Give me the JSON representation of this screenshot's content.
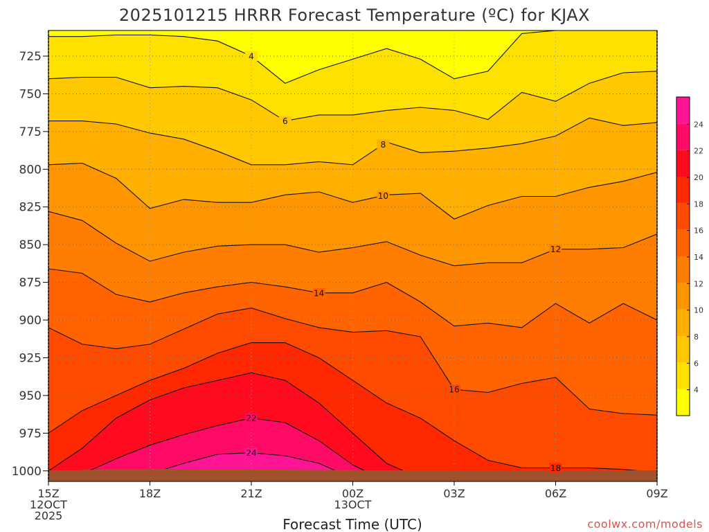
{
  "title": "2025101215 HRRR Forecast Temperature (ºC) for KJAX",
  "xlabel": "Forecast Time (UTC)",
  "credit": "coolwx.com/models",
  "chart_data": {
    "type": "heatmap",
    "title": "2025101215 HRRR Forecast Temperature (ºC) for KJAX",
    "xlabel": "Forecast Time (UTC)",
    "ylabel": "",
    "x_hours": [
      0,
      1,
      2,
      3,
      4,
      5,
      6,
      7,
      8,
      9,
      10,
      11,
      12,
      13,
      14,
      15,
      16,
      17,
      18
    ],
    "x_ticks": [
      {
        "hour": 0,
        "lines": [
          "15Z",
          "12OCT",
          "2025"
        ]
      },
      {
        "hour": 3,
        "lines": [
          "18Z"
        ]
      },
      {
        "hour": 6,
        "lines": [
          "21Z"
        ]
      },
      {
        "hour": 9,
        "lines": [
          "00Z",
          "13OCT"
        ]
      },
      {
        "hour": 12,
        "lines": [
          "03Z"
        ]
      },
      {
        "hour": 15,
        "lines": [
          "06Z"
        ]
      },
      {
        "hour": 18,
        "lines": [
          "09Z"
        ]
      }
    ],
    "ylim": [
      1007,
      708
    ],
    "y_ticks": [
      725,
      750,
      775,
      800,
      825,
      850,
      875,
      900,
      925,
      950,
      975,
      1000
    ],
    "grid": true,
    "contour_interval": 2,
    "contours": [
      {
        "level": 4,
        "label_at": 6.0,
        "p": [
          712,
          712,
          711,
          711,
          712,
          715,
          725,
          743,
          734,
          727,
          720,
          727,
          740,
          735,
          710,
          708,
          708,
          708,
          708
        ]
      },
      {
        "level": 6,
        "label_at": 7.0,
        "p": [
          740,
          739,
          739,
          746,
          745,
          746,
          754,
          768,
          764,
          764,
          761,
          759,
          761,
          767,
          749,
          755,
          743,
          736,
          735
        ]
      },
      {
        "level": 8,
        "label_at": 9.9,
        "p": [
          768,
          768,
          770,
          776,
          780,
          788,
          797,
          797,
          795,
          797,
          782,
          789,
          788,
          786,
          783,
          778,
          766,
          771,
          769
        ]
      },
      {
        "level": 10,
        "label_at": 9.9,
        "p": [
          797,
          796,
          806,
          826,
          820,
          822,
          822,
          817,
          815,
          822,
          817,
          816,
          833,
          824,
          818,
          818,
          812,
          808,
          802
        ]
      },
      {
        "level": 12,
        "label_at": 15.0,
        "p": [
          828,
          834,
          849,
          861,
          855,
          851,
          850,
          850,
          855,
          852,
          848,
          857,
          864,
          862,
          862,
          853,
          853,
          852,
          843
        ]
      },
      {
        "level": 14,
        "label_at": 8.0,
        "p": [
          866,
          869,
          883,
          888,
          882,
          878,
          875,
          878,
          882,
          882,
          875,
          888,
          904,
          902,
          905,
          889,
          902,
          889,
          900
        ]
      },
      {
        "level": 16,
        "label_at": 12.0,
        "p": [
          905,
          916,
          919,
          916,
          906,
          896,
          892,
          899,
          905,
          908,
          907,
          911,
          946,
          948,
          942,
          938,
          959,
          962,
          963
        ]
      },
      {
        "level": 18,
        "label_at": 15.0,
        "p": [
          975,
          960,
          950,
          940,
          932,
          922,
          915,
          915,
          925,
          940,
          955,
          965,
          980,
          993,
          998,
          998,
          998,
          999,
          1001
        ]
      },
      {
        "level": 20,
        "label_at": null,
        "p": [
          1000,
          985,
          965,
          953,
          945,
          940,
          935,
          940,
          955,
          975,
          995,
          1005,
          1007,
          1007,
          1007,
          1007,
          1007,
          1007,
          1007
        ]
      },
      {
        "level": 22,
        "label_at": 6.0,
        "p": [
          1007,
          1002,
          992,
          983,
          976,
          970,
          965,
          968,
          980,
          996,
          1007,
          1007,
          1007,
          1007,
          1007,
          1007,
          1007,
          1007,
          1007
        ]
      },
      {
        "level": 24,
        "label_at": 6.0,
        "p": [
          1007,
          1007,
          1004,
          1002,
          995,
          989,
          988,
          990,
          995,
          1005,
          1007,
          1007,
          1007,
          1007,
          1007,
          1007,
          1007,
          1007,
          1007
        ]
      }
    ],
    "colorbar": {
      "ticks": [
        4,
        6,
        8,
        10,
        12,
        14,
        16,
        18,
        20,
        22,
        24
      ],
      "bins": [
        {
          "min": 2,
          "max": 4,
          "color": "#ffff00"
        },
        {
          "min": 4,
          "max": 6,
          "color": "#ffe100"
        },
        {
          "min": 6,
          "max": 8,
          "color": "#ffc800"
        },
        {
          "min": 8,
          "max": 10,
          "color": "#ffaf00"
        },
        {
          "min": 10,
          "max": 12,
          "color": "#ff9600"
        },
        {
          "min": 12,
          "max": 14,
          "color": "#ff7d00"
        },
        {
          "min": 14,
          "max": 16,
          "color": "#ff6400"
        },
        {
          "min": 16,
          "max": 18,
          "color": "#ff4b00"
        },
        {
          "min": 18,
          "max": 20,
          "color": "#ff2800"
        },
        {
          "min": 20,
          "max": 22,
          "color": "#ff0a1e"
        },
        {
          "min": 22,
          "max": 24,
          "color": "#ff0a64"
        },
        {
          "min": 24,
          "max": 26,
          "color": "#ff1496"
        }
      ]
    },
    "ground_color": "#a0522d"
  }
}
